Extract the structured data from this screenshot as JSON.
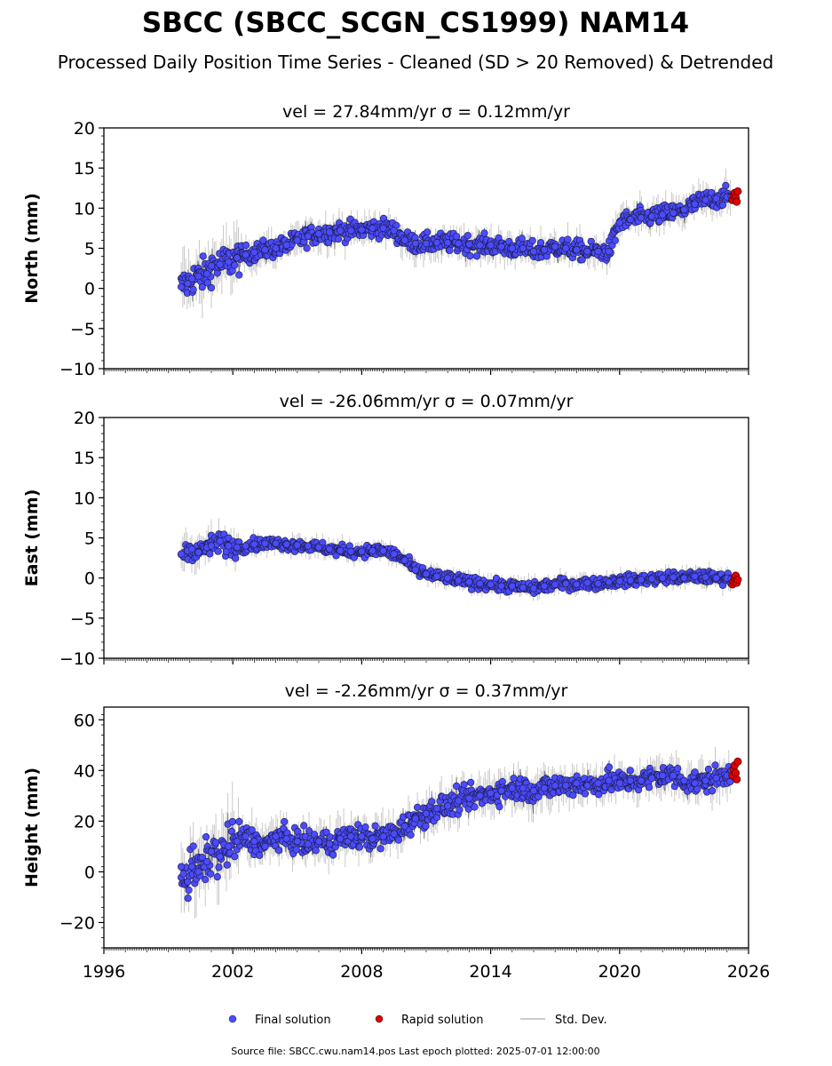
{
  "figure": {
    "title": "SBCC (SBCC_SCGN_CS1999) NAM14",
    "subtitle": "Processed Daily Position Time Series - Cleaned (SD > 20 Removed) & Detrended",
    "footer": "Source file: SBCC.cwu.nam14.pos  Last epoch plotted: 2025-07-01 12:00:00"
  },
  "legend": {
    "placement": "bottom-center",
    "items": [
      {
        "label": "Final solution",
        "marker": "circle",
        "color": "#4B4BFF"
      },
      {
        "label": "Rapid solution",
        "marker": "circle",
        "color": "#E00000"
      },
      {
        "label": "Std. Dev.",
        "marker": "line",
        "color": "#BBBBBB"
      }
    ]
  },
  "colors": {
    "final": "#4B4BFF",
    "rapid": "#E00000",
    "stddev": "#BBBBBB",
    "band": "#555555"
  },
  "chart_data": [
    {
      "type": "scatter",
      "title": "vel = 27.84mm/yr   σ = 0.12mm/yr",
      "ylabel": "North (mm)",
      "xlim": [
        1996,
        2026
      ],
      "ylim": [
        -10,
        20
      ],
      "yticks": [
        -10,
        -5,
        0,
        5,
        10,
        15,
        20
      ],
      "series": [
        {
          "name": "Final solution",
          "x": [
            1999.6,
            1999.9,
            2000.1,
            2000.4,
            2000.8,
            2001.0,
            2001.4,
            2001.8,
            2002.2,
            2002.6,
            2003.0,
            2003.5,
            2004.0,
            2004.5,
            2005.0,
            2005.5,
            2006.0,
            2006.5,
            2007.0,
            2007.5,
            2008.0,
            2008.5,
            2009.0,
            2009.5,
            2010.0,
            2010.5,
            2011.0,
            2011.5,
            2012.0,
            2012.5,
            2013.0,
            2013.5,
            2014.0,
            2014.5,
            2015.0,
            2015.5,
            2016.0,
            2016.5,
            2017.0,
            2017.5,
            2018.0,
            2018.5,
            2019.0,
            2019.5,
            2020.0,
            2020.5,
            2021.0,
            2021.5,
            2022.0,
            2022.5,
            2023.0,
            2023.5,
            2024.0,
            2024.5,
            2025.0,
            2025.2
          ],
          "y": [
            0.2,
            0.6,
            1.2,
            1.5,
            1.8,
            2.8,
            3.0,
            3.3,
            3.8,
            4.2,
            4.5,
            4.8,
            5.0,
            5.4,
            6.0,
            6.5,
            6.8,
            7.0,
            7.2,
            7.2,
            7.3,
            7.5,
            7.5,
            7.2,
            6.0,
            5.6,
            5.6,
            5.7,
            5.7,
            5.6,
            5.5,
            5.4,
            5.4,
            5.2,
            5.0,
            5.0,
            4.6,
            4.8,
            5.2,
            5.0,
            4.8,
            4.6,
            4.6,
            4.6,
            8.2,
            8.6,
            8.8,
            9.0,
            9.2,
            9.4,
            9.8,
            10.5,
            11.0,
            11.2,
            11.4,
            11.5
          ]
        },
        {
          "name": "Rapid solution",
          "x": [
            2025.25,
            2025.3,
            2025.35,
            2025.4,
            2025.45,
            2025.5
          ],
          "y": [
            11.0,
            11.6,
            11.9,
            11.3,
            10.8,
            12.1
          ]
        }
      ]
    },
    {
      "type": "scatter",
      "title": "vel = -26.06mm/yr   σ = 0.07mm/yr",
      "ylabel": "East (mm)",
      "xlim": [
        1996,
        2026
      ],
      "ylim": [
        -10,
        20
      ],
      "yticks": [
        -10,
        -5,
        0,
        5,
        10,
        15,
        20
      ],
      "series": [
        {
          "name": "Final solution",
          "x": [
            1999.6,
            1999.9,
            2000.1,
            2000.4,
            2000.8,
            2001.0,
            2001.4,
            2001.8,
            2002.2,
            2002.6,
            2003.0,
            2003.5,
            2004.0,
            2004.5,
            2005.0,
            2005.5,
            2006.0,
            2006.5,
            2007.0,
            2007.5,
            2008.0,
            2008.5,
            2009.0,
            2009.5,
            2010.0,
            2010.5,
            2011.0,
            2011.5,
            2012.0,
            2012.5,
            2013.0,
            2013.5,
            2014.0,
            2014.5,
            2015.0,
            2015.5,
            2016.0,
            2016.5,
            2017.0,
            2017.5,
            2018.0,
            2018.5,
            2019.0,
            2019.5,
            2020.0,
            2020.5,
            2021.0,
            2021.5,
            2022.0,
            2022.5,
            2023.0,
            2023.5,
            2024.0,
            2024.5,
            2025.0,
            2025.2
          ],
          "y": [
            3.0,
            3.4,
            3.6,
            3.2,
            3.8,
            4.0,
            4.6,
            4.0,
            3.8,
            4.0,
            4.2,
            4.3,
            4.3,
            4.2,
            4.1,
            4.0,
            3.8,
            3.6,
            3.4,
            3.3,
            3.3,
            3.4,
            3.4,
            3.0,
            2.2,
            1.0,
            0.5,
            0.2,
            0.0,
            -0.3,
            -0.5,
            -0.7,
            -0.8,
            -1.0,
            -1.0,
            -1.2,
            -1.3,
            -1.0,
            -0.8,
            -0.7,
            -0.8,
            -0.6,
            -0.7,
            -0.5,
            -0.4,
            -0.3,
            -0.2,
            -0.1,
            0.0,
            0.1,
            0.0,
            0.2,
            0.1,
            0.0,
            0.0,
            -0.1
          ]
        },
        {
          "name": "Rapid solution",
          "x": [
            2025.25,
            2025.3,
            2025.35,
            2025.4,
            2025.45,
            2025.5
          ],
          "y": [
            -0.8,
            -0.4,
            0.0,
            0.3,
            -0.6,
            -0.2
          ]
        }
      ]
    },
    {
      "type": "scatter",
      "title": "vel = -2.26mm/yr   σ = 0.37mm/yr",
      "ylabel": "Height (mm)",
      "xlim": [
        1996,
        2026
      ],
      "ylim": [
        -30,
        65
      ],
      "yticks": [
        -20,
        0,
        20,
        40,
        60
      ],
      "xticks": [
        1996,
        2002,
        2008,
        2014,
        2020,
        2026
      ],
      "series": [
        {
          "name": "Final solution",
          "x": [
            1999.6,
            1999.9,
            2000.1,
            2000.4,
            2000.8,
            2001.0,
            2001.4,
            2001.8,
            2002.2,
            2002.6,
            2003.0,
            2003.5,
            2004.0,
            2004.5,
            2005.0,
            2005.5,
            2006.0,
            2006.5,
            2007.0,
            2007.5,
            2008.0,
            2008.5,
            2009.0,
            2009.5,
            2010.0,
            2010.5,
            2011.0,
            2011.5,
            2012.0,
            2012.5,
            2013.0,
            2013.5,
            2014.0,
            2014.5,
            2015.0,
            2015.5,
            2016.0,
            2016.5,
            2017.0,
            2017.5,
            2018.0,
            2018.5,
            2019.0,
            2019.5,
            2020.0,
            2020.5,
            2021.0,
            2021.5,
            2022.0,
            2022.5,
            2023.0,
            2023.5,
            2024.0,
            2024.5,
            2025.0,
            2025.2
          ],
          "y": [
            2.0,
            -4.0,
            2.0,
            0.0,
            4.0,
            8.0,
            6.0,
            10.0,
            12.0,
            14.0,
            12.0,
            10.0,
            14.0,
            13.0,
            12.0,
            11.0,
            12.0,
            11.0,
            13.0,
            14.0,
            14.0,
            13.0,
            14.0,
            15.0,
            18.0,
            21.0,
            23.0,
            25.0,
            26.0,
            28.0,
            29.0,
            30.0,
            31.0,
            32.0,
            33.0,
            33.0,
            32.0,
            33.0,
            34.0,
            34.0,
            35.0,
            34.0,
            35.0,
            36.0,
            35.0,
            36.0,
            36.0,
            37.0,
            38.0,
            38.0,
            36.0,
            35.0,
            36.0,
            37.0,
            38.0,
            40.0
          ]
        },
        {
          "name": "Rapid solution",
          "x": [
            2025.25,
            2025.3,
            2025.35,
            2025.4,
            2025.45,
            2025.5
          ],
          "y": [
            38.0,
            40.5,
            42.0,
            39.0,
            36.5,
            43.5
          ]
        }
      ]
    }
  ]
}
